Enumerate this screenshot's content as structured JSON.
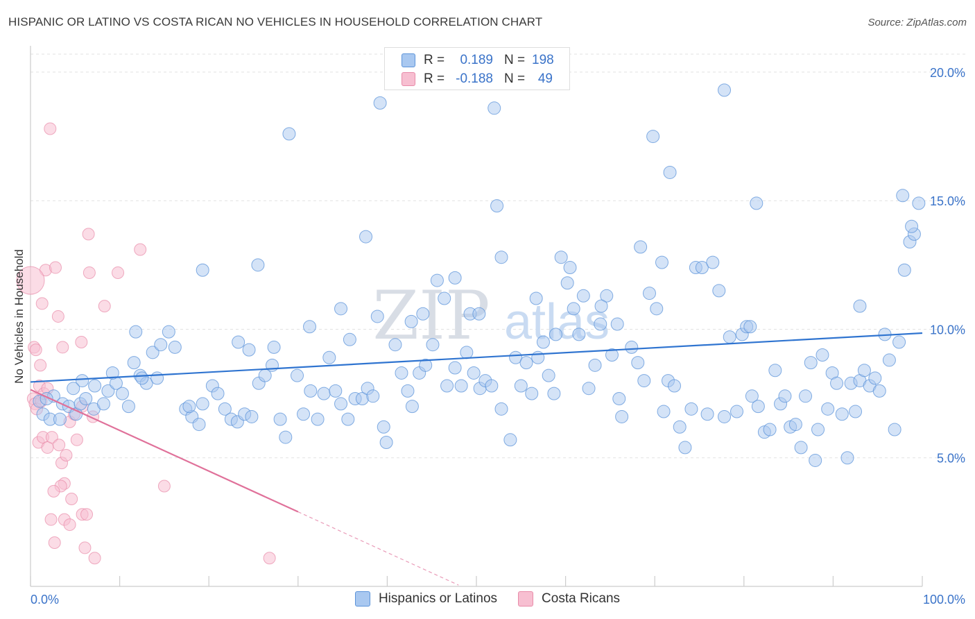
{
  "title": "HISPANIC OR LATINO VS COSTA RICAN NO VEHICLES IN HOUSEHOLD CORRELATION CHART",
  "source": "Source: ZipAtlas.com",
  "colors": {
    "blue_fill": "#a9c8f0",
    "blue_stroke": "#5b93d9",
    "blue_line": "#2f74d0",
    "pink_fill": "#f7bfd1",
    "pink_stroke": "#e88aa8",
    "pink_line": "#e0719a",
    "axis_label": "#3a73c9",
    "grid": "#e2e2e2"
  },
  "legend": {
    "r_label": "R =",
    "n_label": "N =",
    "rows": [
      {
        "series": "blue",
        "r": "0.189",
        "n": "198"
      },
      {
        "series": "pink",
        "r": "-0.188",
        "n": "49"
      }
    ]
  },
  "watermark": {
    "zip": "ZIP",
    "atlas": "atlas"
  },
  "chart_data": {
    "type": "scatter",
    "title": "HISPANIC OR LATINO VS COSTA RICAN NO VEHICLES IN HOUSEHOLD CORRELATION CHART",
    "xlabel": "",
    "ylabel": "No Vehicles in Household",
    "xlim": [
      0,
      100
    ],
    "ylim": [
      0,
      20.7
    ],
    "x_tick_labels": [
      "0.0%",
      "100.0%"
    ],
    "y_ticks": [
      5,
      10,
      15,
      20
    ],
    "y_tick_labels": [
      "5.0%",
      "10.0%",
      "15.0%",
      "20.0%"
    ],
    "grid": "horizontal dashed",
    "legend_position": "top-center",
    "series": [
      {
        "name": "Hispanics or Latinos",
        "color": "blue",
        "trend": {
          "x": [
            0,
            100
          ],
          "y": [
            7.95,
            9.85
          ]
        },
        "points": [
          [
            1.0,
            7.2
          ],
          [
            1.4,
            6.7
          ],
          [
            2.2,
            6.5
          ],
          [
            2.6,
            7.4
          ],
          [
            1.8,
            7.3
          ],
          [
            3.3,
            6.5
          ],
          [
            3.6,
            7.1
          ],
          [
            4.3,
            7.0
          ],
          [
            5.1,
            6.7
          ],
          [
            5.6,
            7.1
          ],
          [
            6.2,
            7.3
          ],
          [
            7.1,
            6.9
          ],
          [
            8.2,
            7.1
          ],
          [
            8.7,
            7.6
          ],
          [
            9.6,
            7.9
          ],
          [
            10.3,
            7.5
          ],
          [
            11.0,
            7.0
          ],
          [
            11.6,
            8.7
          ],
          [
            12.3,
            8.2
          ],
          [
            13.0,
            7.9
          ],
          [
            14.2,
            8.1
          ],
          [
            7.2,
            7.8
          ],
          [
            5.8,
            8.0
          ],
          [
            4.8,
            7.7
          ],
          [
            9.2,
            8.3
          ],
          [
            12.5,
            8.1
          ],
          [
            13.7,
            9.1
          ],
          [
            14.6,
            9.4
          ],
          [
            15.5,
            9.9
          ],
          [
            16.2,
            9.3
          ],
          [
            11.8,
            9.9
          ],
          [
            17.4,
            6.9
          ],
          [
            18.1,
            6.6
          ],
          [
            18.9,
            6.3
          ],
          [
            17.8,
            7.0
          ],
          [
            19.3,
            7.1
          ],
          [
            20.4,
            7.8
          ],
          [
            21.0,
            7.5
          ],
          [
            21.8,
            6.9
          ],
          [
            22.5,
            6.5
          ],
          [
            23.2,
            6.4
          ],
          [
            24.0,
            6.7
          ],
          [
            24.8,
            6.6
          ],
          [
            25.6,
            7.9
          ],
          [
            26.3,
            8.2
          ],
          [
            27.1,
            8.6
          ],
          [
            28.0,
            6.5
          ],
          [
            28.6,
            5.8
          ],
          [
            29.9,
            8.2
          ],
          [
            30.6,
            6.7
          ],
          [
            31.4,
            7.6
          ],
          [
            32.2,
            6.5
          ],
          [
            32.9,
            7.5
          ],
          [
            33.5,
            8.9
          ],
          [
            34.2,
            7.6
          ],
          [
            34.8,
            7.1
          ],
          [
            35.6,
            6.5
          ],
          [
            36.4,
            7.3
          ],
          [
            37.2,
            7.3
          ],
          [
            37.8,
            7.7
          ],
          [
            38.4,
            7.4
          ],
          [
            39.6,
            6.2
          ],
          [
            39.9,
            5.6
          ],
          [
            40.9,
            9.4
          ],
          [
            41.6,
            8.3
          ],
          [
            42.3,
            7.6
          ],
          [
            42.8,
            7.0
          ],
          [
            43.6,
            8.3
          ],
          [
            44.3,
            8.6
          ],
          [
            45.1,
            9.4
          ],
          [
            45.6,
            11.9
          ],
          [
            46.7,
            7.8
          ],
          [
            47.6,
            8.5
          ],
          [
            48.3,
            7.8
          ],
          [
            48.9,
            9.1
          ],
          [
            49.7,
            8.3
          ],
          [
            50.4,
            7.7
          ],
          [
            51.0,
            8.0
          ],
          [
            51.7,
            7.8
          ],
          [
            52.8,
            6.9
          ],
          [
            53.8,
            5.7
          ],
          [
            54.4,
            8.9
          ],
          [
            55.0,
            7.8
          ],
          [
            55.6,
            8.7
          ],
          [
            56.2,
            7.5
          ],
          [
            56.9,
            8.9
          ],
          [
            57.5,
            9.5
          ],
          [
            58.1,
            8.2
          ],
          [
            58.7,
            7.5
          ],
          [
            59.5,
            12.8
          ],
          [
            60.2,
            11.8
          ],
          [
            60.5,
            12.4
          ],
          [
            61.5,
            9.8
          ],
          [
            62.0,
            11.3
          ],
          [
            62.6,
            7.7
          ],
          [
            63.3,
            8.6
          ],
          [
            63.9,
            10.2
          ],
          [
            64.6,
            11.3
          ],
          [
            65.2,
            9.0
          ],
          [
            66.0,
            7.3
          ],
          [
            66.3,
            6.6
          ],
          [
            67.4,
            9.3
          ],
          [
            68.1,
            8.7
          ],
          [
            68.8,
            8.0
          ],
          [
            69.4,
            11.4
          ],
          [
            70.2,
            10.8
          ],
          [
            71.0,
            6.8
          ],
          [
            71.5,
            8.0
          ],
          [
            72.2,
            7.8
          ],
          [
            72.8,
            6.2
          ],
          [
            73.4,
            5.4
          ],
          [
            74.1,
            6.9
          ],
          [
            74.6,
            12.4
          ],
          [
            75.3,
            12.4
          ],
          [
            75.9,
            6.7
          ],
          [
            76.5,
            12.6
          ],
          [
            77.2,
            11.5
          ],
          [
            77.8,
            6.6
          ],
          [
            78.4,
            9.7
          ],
          [
            79.2,
            6.8
          ],
          [
            79.8,
            9.8
          ],
          [
            80.3,
            10.1
          ],
          [
            80.9,
            7.4
          ],
          [
            81.6,
            7.0
          ],
          [
            82.3,
            6.0
          ],
          [
            82.9,
            6.1
          ],
          [
            83.5,
            8.4
          ],
          [
            84.1,
            7.1
          ],
          [
            84.6,
            7.4
          ],
          [
            85.2,
            6.2
          ],
          [
            85.8,
            6.3
          ],
          [
            86.4,
            5.4
          ],
          [
            86.9,
            7.4
          ],
          [
            87.5,
            8.7
          ],
          [
            88.0,
            4.9
          ],
          [
            88.3,
            6.1
          ],
          [
            88.8,
            9.0
          ],
          [
            89.4,
            6.9
          ],
          [
            89.9,
            8.3
          ],
          [
            90.4,
            7.9
          ],
          [
            91.0,
            6.7
          ],
          [
            91.6,
            5.0
          ],
          [
            92.0,
            7.9
          ],
          [
            92.5,
            6.8
          ],
          [
            93.0,
            8.0
          ],
          [
            93.5,
            8.4
          ],
          [
            94.1,
            7.8
          ],
          [
            94.7,
            8.1
          ],
          [
            95.2,
            7.6
          ],
          [
            95.8,
            9.8
          ],
          [
            96.3,
            8.8
          ],
          [
            96.9,
            6.1
          ],
          [
            97.4,
            9.5
          ],
          [
            98.0,
            12.3
          ],
          [
            98.6,
            13.4
          ],
          [
            99.1,
            13.7
          ],
          [
            99.6,
            14.9
          ],
          [
            98.8,
            14.0
          ],
          [
            97.8,
            15.2
          ],
          [
            29.0,
            17.6
          ],
          [
            39.2,
            18.8
          ],
          [
            52.0,
            18.6
          ],
          [
            52.5,
            20.3
          ],
          [
            69.8,
            17.5
          ],
          [
            71.7,
            16.1
          ],
          [
            77.8,
            19.3
          ],
          [
            81.4,
            14.9
          ],
          [
            52.3,
            14.8
          ],
          [
            37.6,
            13.6
          ],
          [
            52.8,
            12.8
          ],
          [
            47.6,
            12.0
          ],
          [
            60.9,
            10.8
          ],
          [
            65.8,
            10.2
          ],
          [
            58.9,
            9.8
          ],
          [
            64.0,
            10.9
          ],
          [
            70.8,
            12.6
          ],
          [
            68.4,
            13.2
          ],
          [
            80.7,
            10.1
          ],
          [
            93.0,
            10.9
          ],
          [
            56.7,
            11.2
          ],
          [
            44.0,
            10.6
          ],
          [
            38.9,
            10.5
          ],
          [
            34.8,
            10.8
          ],
          [
            25.5,
            12.5
          ],
          [
            19.3,
            12.3
          ],
          [
            23.3,
            9.5
          ],
          [
            24.5,
            9.2
          ],
          [
            27.3,
            9.3
          ],
          [
            31.3,
            10.1
          ],
          [
            35.8,
            9.6
          ],
          [
            42.7,
            10.3
          ],
          [
            46.4,
            11.2
          ],
          [
            49.3,
            10.6
          ],
          [
            50.3,
            10.6
          ]
        ]
      },
      {
        "name": "Costa Ricans",
        "color": "pink",
        "trend": {
          "x": [
            0,
            30
          ],
          "y": [
            7.65,
            2.9
          ]
        },
        "trend_dashed": {
          "x": [
            30,
            48
          ],
          "y": [
            2.9,
            0.05
          ]
        },
        "points": [
          [
            0.3,
            7.3
          ],
          [
            0.5,
            7.1
          ],
          [
            0.7,
            6.9
          ],
          [
            1.0,
            7.8
          ],
          [
            1.2,
            7.2
          ],
          [
            1.5,
            7.5
          ],
          [
            0.4,
            9.3
          ],
          [
            0.6,
            9.2
          ],
          [
            1.1,
            8.6
          ],
          [
            1.3,
            11.0
          ],
          [
            1.7,
            12.3
          ],
          [
            2.8,
            12.4
          ],
          [
            3.1,
            10.5
          ],
          [
            3.6,
            9.3
          ],
          [
            2.2,
            17.8
          ],
          [
            0.9,
            5.6
          ],
          [
            1.4,
            5.8
          ],
          [
            1.9,
            5.4
          ],
          [
            2.4,
            5.8
          ],
          [
            3.2,
            5.5
          ],
          [
            3.5,
            4.8
          ],
          [
            4.0,
            5.1
          ],
          [
            4.4,
            6.4
          ],
          [
            4.9,
            6.7
          ],
          [
            5.2,
            5.7
          ],
          [
            5.8,
            7.0
          ],
          [
            3.8,
            4.0
          ],
          [
            4.6,
            3.4
          ],
          [
            3.4,
            3.9
          ],
          [
            2.6,
            3.7
          ],
          [
            2.3,
            2.6
          ],
          [
            3.8,
            2.6
          ],
          [
            4.4,
            2.4
          ],
          [
            5.8,
            2.8
          ],
          [
            6.3,
            2.8
          ],
          [
            2.7,
            1.7
          ],
          [
            6.1,
            1.5
          ],
          [
            7.2,
            1.1
          ],
          [
            7.0,
            6.6
          ],
          [
            6.6,
            12.2
          ],
          [
            6.5,
            13.7
          ],
          [
            8.3,
            10.9
          ],
          [
            9.8,
            12.2
          ],
          [
            12.3,
            13.1
          ],
          [
            15.0,
            3.9
          ],
          [
            26.8,
            1.1
          ],
          [
            5.7,
            9.5
          ],
          [
            1.9,
            7.7
          ],
          [
            0.0,
            11.9
          ]
        ]
      }
    ]
  },
  "bottom_legend": [
    {
      "series": "blue",
      "label": "Hispanics or Latinos"
    },
    {
      "series": "pink",
      "label": "Costa Ricans"
    }
  ]
}
